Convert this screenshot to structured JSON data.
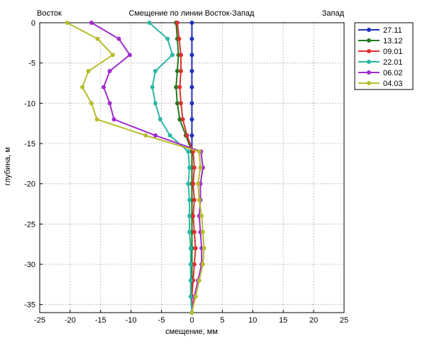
{
  "chart_data": {
    "type": "line",
    "title": "Смещение по линии Восток-Запад",
    "left_label": "Восток",
    "right_label": "Запад",
    "xlabel": "смещение, мм",
    "ylabel": "глубина, м",
    "xlim": [
      -25,
      25
    ],
    "ylim": [
      -36,
      0
    ],
    "xticks": [
      -25,
      -20,
      -15,
      -10,
      -5,
      0,
      5,
      10,
      15,
      20,
      25
    ],
    "yticks": [
      0,
      -5,
      -10,
      -15,
      -20,
      -25,
      -30,
      -35
    ],
    "grid": true,
    "legend_position": "top-right-outside",
    "depths": [
      0,
      -2,
      -4,
      -6,
      -8,
      -10,
      -12,
      -14,
      -16,
      -18,
      -20,
      -22,
      -24,
      -26,
      -28,
      -30,
      -32,
      -34,
      -36
    ],
    "series": [
      {
        "name": "27.11",
        "color": "#1f2fbf",
        "values": [
          0,
          0,
          0,
          0,
          0,
          0,
          0,
          0,
          0,
          0,
          0,
          0,
          0,
          0,
          0,
          0,
          0,
          0,
          0
        ]
      },
      {
        "name": "13.12",
        "color": "#1e7a1e",
        "values": [
          -2.6,
          -2.4,
          -2.2,
          -2.4,
          -2.6,
          -2.4,
          -2.0,
          -1.0,
          0.0,
          0.0,
          0.0,
          0.0,
          0.0,
          0.0,
          0.0,
          0.0,
          0.0,
          0.0,
          0.0
        ]
      },
      {
        "name": "09.01",
        "color": "#e03030",
        "values": [
          -2.4,
          -2.1,
          -1.8,
          -1.8,
          -2.0,
          -1.8,
          -1.5,
          -0.8,
          0.2,
          0.4,
          0.2,
          0.4,
          0.2,
          0.4,
          0.6,
          0.4,
          0.2,
          0.0,
          0.0
        ]
      },
      {
        "name": "22.01",
        "color": "#2bb7a5",
        "values": [
          -7.0,
          -4.0,
          -3.2,
          -6.0,
          -6.5,
          -6.0,
          -5.2,
          -3.6,
          -0.6,
          -0.4,
          -0.6,
          -0.4,
          -0.4,
          -0.4,
          -0.2,
          -0.2,
          -0.2,
          -0.2,
          0.0
        ]
      },
      {
        "name": "06.02",
        "color": "#a02bd0",
        "values": [
          -16.5,
          -12.0,
          -10.2,
          -13.5,
          -14.5,
          -13.5,
          -12.8,
          -6.0,
          1.5,
          1.8,
          1.4,
          1.4,
          1.2,
          1.4,
          1.6,
          1.6,
          1.0,
          0.4,
          0.0
        ]
      },
      {
        "name": "04.03",
        "color": "#b7bd2a",
        "values": [
          -20.5,
          -15.5,
          -13.0,
          -17.0,
          -18.0,
          -16.5,
          -15.6,
          -7.6,
          1.2,
          1.4,
          1.0,
          1.2,
          1.6,
          1.8,
          2.0,
          1.8,
          1.2,
          0.6,
          0.0
        ]
      }
    ]
  }
}
